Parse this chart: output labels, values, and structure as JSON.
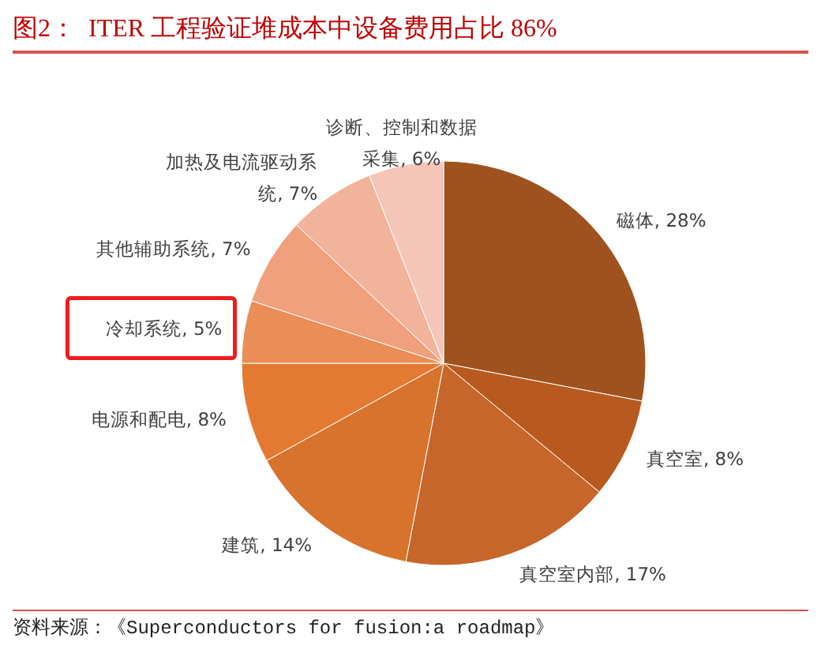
{
  "chart_data": {
    "type": "pie",
    "title": "图2：  ITER 工程验证堆成本中设备费用占比 86%",
    "categories": [
      "磁体",
      "真空室",
      "真空室内部",
      "建筑",
      "电源和配电",
      "冷却系统",
      "其他辅助系统",
      "加热及电流驱动系统",
      "诊断、控制和数据采集"
    ],
    "values": [
      28,
      8,
      17,
      14,
      8,
      5,
      7,
      7,
      6
    ],
    "value_labels": [
      "28%",
      "8%",
      "17%",
      "14%",
      "8%",
      "5%",
      "7%",
      "7%",
      "6%"
    ],
    "colors": [
      "#a0521e",
      "#b85a1f",
      "#c7662a",
      "#d8732d",
      "#e47a32",
      "#ea8d56",
      "#f0a07c",
      "#f2b39b",
      "#f5c6b8"
    ],
    "legend": false,
    "annotations": [
      "资料来源：《Superconductors for fusion:a roadmap》"
    ]
  }
}
